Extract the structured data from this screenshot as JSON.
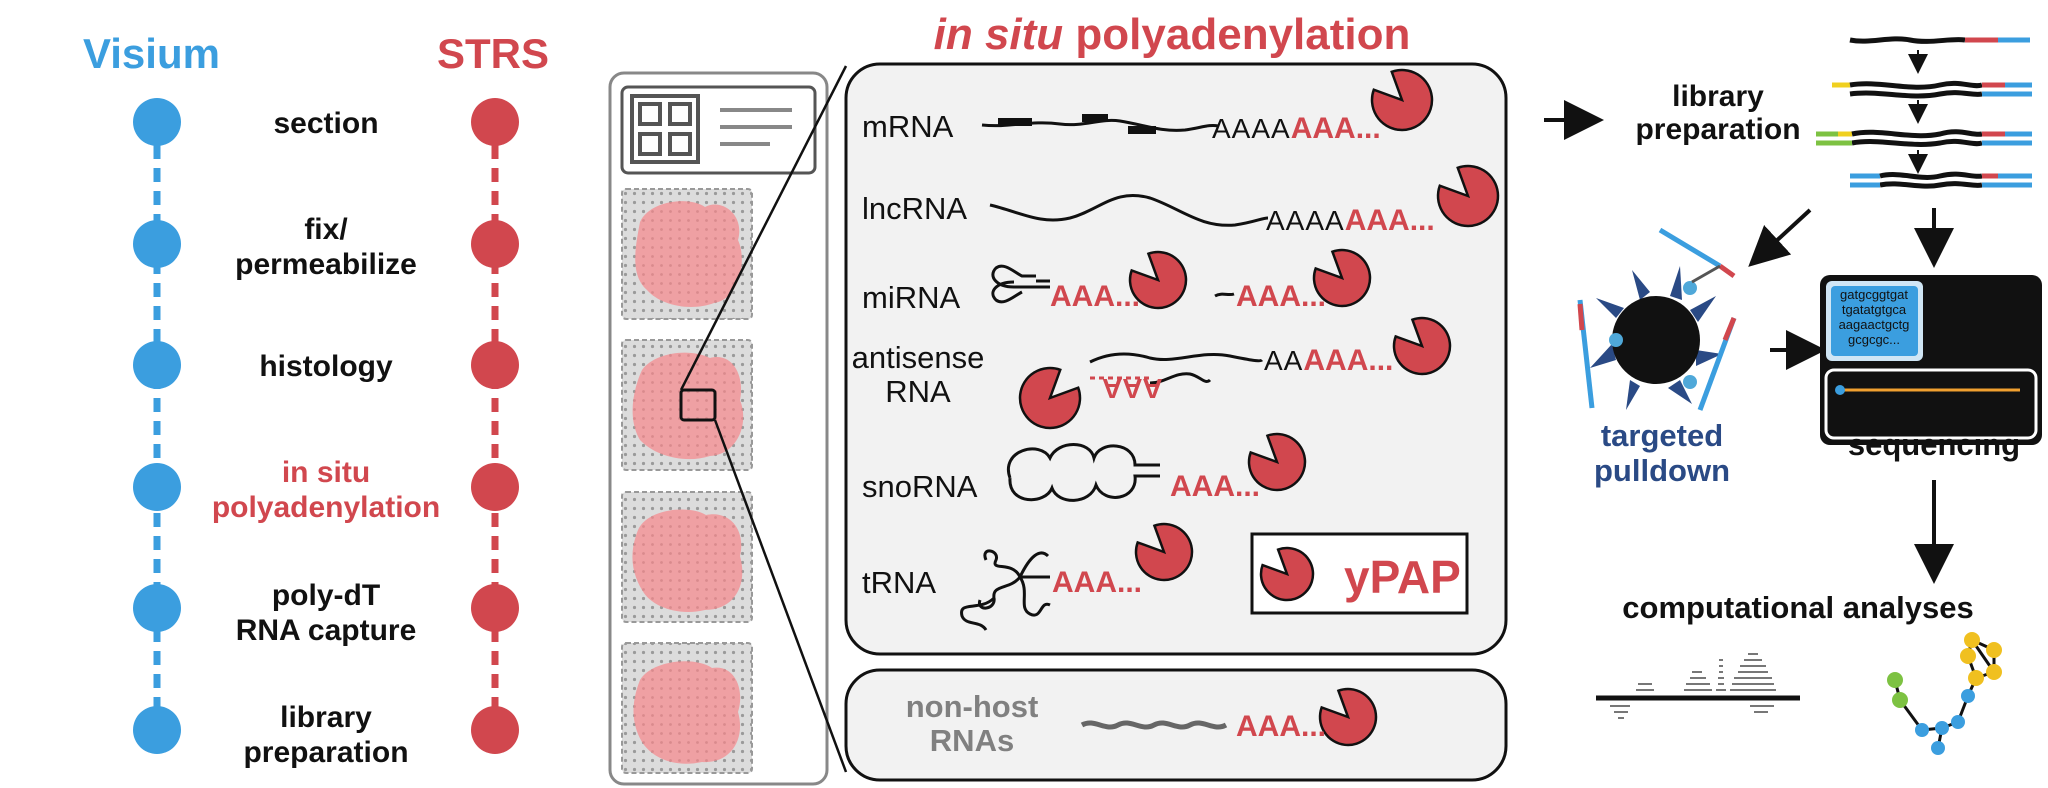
{
  "timeline": {
    "visium_title": "Visium",
    "strs_title": "STRS",
    "steps": [
      {
        "line1": "section",
        "line2": ""
      },
      {
        "line1": "fix/",
        "line2": "permeabilize"
      },
      {
        "line1": "histology",
        "line2": ""
      },
      {
        "line1": "in situ",
        "line2": "polyadenylation"
      },
      {
        "line1": "poly-dT",
        "line2": "RNA capture"
      },
      {
        "line1": "library",
        "line2": "preparation"
      }
    ],
    "colors": {
      "visium": "#3B9EDF",
      "strs": "#D1474E"
    }
  },
  "polyadenylation": {
    "title_italic": "in situ",
    "title_rest": " polyadenylation",
    "rna_labels": {
      "mrna": "mRNA",
      "lncrna": "lncRNA",
      "mirna": "miRNA",
      "antisense_1": "antisense",
      "antisense_2": "RNA",
      "snorna": "snoRNA",
      "trna": "tRNA"
    },
    "tails": {
      "mrna_a": "AAAA",
      "mrna_b": "AAA...",
      "lncrna_a": "AAAA",
      "lncrna_b": "AAA...",
      "mirna_1": "AAA...",
      "mirna_2": "AAA...",
      "antisense_a": "AA",
      "antisense_b": "AAA...",
      "antisense_rev": "AAA",
      "snorna": "AAA...",
      "trna": "AAA...",
      "nonhost": "AAA..."
    },
    "enzyme_label": "yPAP",
    "nonhost_1": "non-host",
    "nonhost_2": "RNAs"
  },
  "workflow": {
    "library_1": "library",
    "library_2": "preparation",
    "pulldown_1": "targeted",
    "pulldown_2": "pulldown",
    "sequencing": "sequencing",
    "computational": "computational analyses",
    "sequence_lines": [
      "gatgcggtgat",
      "tgatatgtgca",
      "aagaactgctg",
      "gcgcgc..."
    ]
  }
}
